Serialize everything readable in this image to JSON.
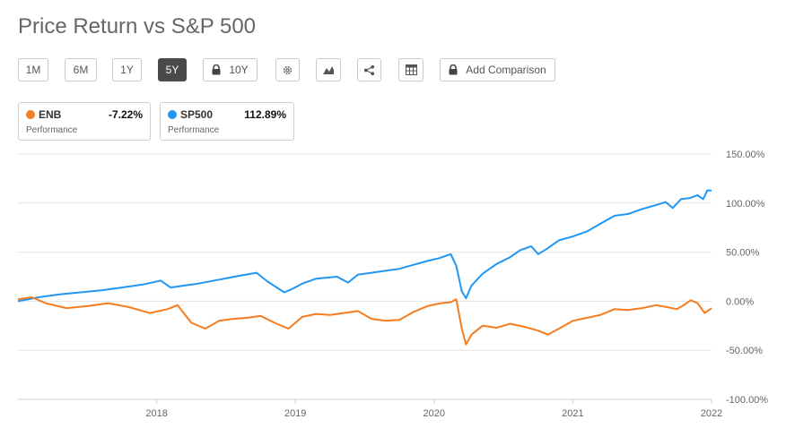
{
  "header": {
    "title": "Price Return vs S&P 500"
  },
  "toolbar": {
    "ranges": [
      "1M",
      "6M",
      "1Y",
      "5Y",
      "10Y"
    ],
    "active_range": "5Y",
    "add_comparison_label": "Add Comparison"
  },
  "legend": [
    {
      "symbol": "ENB",
      "value": "-7.22%",
      "sublabel": "Performance",
      "color": "#f57c1f"
    },
    {
      "symbol": "SP500",
      "value": "112.89%",
      "sublabel": "Performance",
      "color": "#2196f3"
    }
  ],
  "chart_data": {
    "type": "line",
    "title": "",
    "xlabel": "",
    "ylabel": "",
    "x_ticks": [
      "2018",
      "2019",
      "2020",
      "2021",
      "2022"
    ],
    "y_ticks": [
      "150.00%",
      "100.00%",
      "50.00%",
      "0.00%",
      "-50.00%",
      "-100.00%"
    ],
    "xlim": [
      2017.0,
      2022.0
    ],
    "ylim": [
      -100,
      150
    ],
    "grid": true,
    "series": [
      {
        "name": "SP500",
        "color": "#2196f3",
        "x": [
          2017.0,
          2017.15,
          2017.3,
          2017.45,
          2017.6,
          2017.75,
          2017.9,
          2018.03,
          2018.1,
          2018.2,
          2018.3,
          2018.45,
          2018.6,
          2018.72,
          2018.8,
          2018.92,
          2018.97,
          2019.05,
          2019.15,
          2019.3,
          2019.38,
          2019.45,
          2019.55,
          2019.65,
          2019.75,
          2019.85,
          2019.95,
          2020.04,
          2020.12,
          2020.16,
          2020.2,
          2020.23,
          2020.27,
          2020.35,
          2020.45,
          2020.55,
          2020.62,
          2020.7,
          2020.75,
          2020.82,
          2020.9,
          2021.0,
          2021.1,
          2021.2,
          2021.3,
          2021.4,
          2021.5,
          2021.6,
          2021.67,
          2021.72,
          2021.78,
          2021.84,
          2021.9,
          2021.94,
          2021.97,
          2022.0
        ],
        "values": [
          0,
          4,
          7,
          9,
          11,
          14,
          17,
          21,
          14,
          16,
          18,
          22,
          26,
          29,
          20,
          9,
          12,
          18,
          23,
          25,
          19,
          27,
          29,
          31,
          33,
          37,
          41,
          44,
          48,
          36,
          10,
          3,
          16,
          28,
          38,
          45,
          52,
          56,
          48,
          54,
          62,
          66,
          71,
          79,
          87,
          89,
          94,
          98,
          101,
          95,
          104,
          105,
          108,
          104,
          113,
          112.89
        ]
      },
      {
        "name": "ENB",
        "color": "#f57c1f",
        "x": [
          2017.0,
          2017.1,
          2017.2,
          2017.35,
          2017.5,
          2017.65,
          2017.8,
          2017.95,
          2018.08,
          2018.15,
          2018.25,
          2018.35,
          2018.45,
          2018.55,
          2018.65,
          2018.75,
          2018.85,
          2018.95,
          2019.05,
          2019.15,
          2019.25,
          2019.35,
          2019.45,
          2019.55,
          2019.65,
          2019.75,
          2019.85,
          2019.95,
          2020.05,
          2020.12,
          2020.16,
          2020.2,
          2020.23,
          2020.27,
          2020.35,
          2020.45,
          2020.55,
          2020.65,
          2020.75,
          2020.82,
          2020.9,
          2021.0,
          2021.1,
          2021.2,
          2021.3,
          2021.4,
          2021.5,
          2021.6,
          2021.68,
          2021.75,
          2021.8,
          2021.85,
          2021.9,
          2021.95,
          2022.0
        ],
        "values": [
          2,
          4,
          -2,
          -7,
          -5,
          -2,
          -6,
          -12,
          -8,
          -4,
          -22,
          -28,
          -20,
          -18,
          -17,
          -15,
          -22,
          -28,
          -16,
          -13,
          -14,
          -12,
          -10,
          -18,
          -20,
          -19,
          -11,
          -5,
          -2,
          -1,
          2,
          -28,
          -44,
          -34,
          -25,
          -27,
          -23,
          -26,
          -30,
          -34,
          -28,
          -20,
          -17,
          -14,
          -8,
          -9,
          -7,
          -4,
          -6,
          -8,
          -4,
          1,
          -2,
          -12,
          -7.22
        ]
      }
    ]
  }
}
